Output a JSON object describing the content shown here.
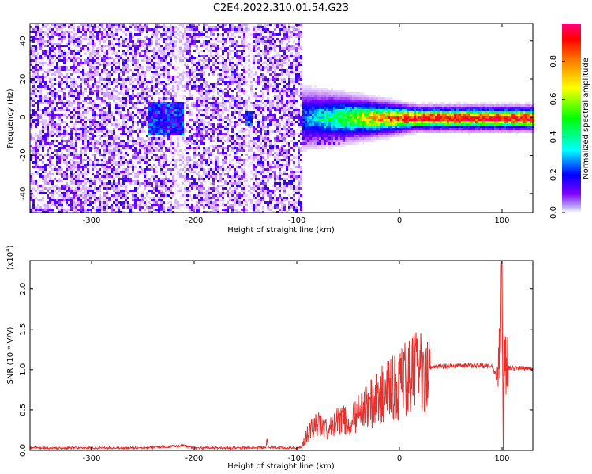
{
  "title": "C2E4.2022.310.01.54.G23",
  "chart_data": [
    {
      "type": "heatmap",
      "xlabel": "Height of straight line (km)",
      "ylabel": "Frequency (Hz)",
      "xlim": [
        -360,
        130
      ],
      "ylim": [
        -50,
        49
      ],
      "x_ticks": [
        -300,
        -200,
        -100,
        0,
        100
      ],
      "x_tick_labels": [
        "-300",
        "-200",
        "-100",
        "0",
        "100"
      ],
      "y_ticks": [
        -40,
        -20,
        0,
        20,
        40
      ],
      "y_tick_labels": [
        "-40",
        "-20",
        "0",
        "20",
        "40"
      ],
      "colorbar": {
        "label": "Normalized spectral amplitude",
        "range": [
          0,
          1
        ],
        "ticks": [
          0.0,
          0.2,
          0.4,
          0.6,
          0.8
        ],
        "tick_labels": [
          "0.0",
          "0.2",
          "0.4",
          "0.6",
          "0.8"
        ],
        "colormap": [
          "#ffffff",
          "#7f00ff",
          "#0000ff",
          "#00ffff",
          "#00ff00",
          "#ffff00",
          "#ff7f00",
          "#ff0000",
          "#ff0080"
        ]
      },
      "noise_region": {
        "x_range": [
          -360,
          -95
        ],
        "amplitude_range": [
          0.0,
          0.25
        ]
      },
      "signal_band": {
        "x_range": [
          -95,
          130
        ],
        "center_frequency": 0,
        "peak_amplitude": 0.95
      },
      "grid": false
    },
    {
      "type": "line",
      "xlabel": "Height of straight line (km)",
      "ylabel": "SNR (10 * V/V)",
      "y_multiplier_label": "(x10",
      "y_multiplier_exponent": "4",
      "y_multiplier_close": ")",
      "xlim": [
        -360,
        130
      ],
      "ylim": [
        0,
        23500
      ],
      "x_ticks": [
        -300,
        -200,
        -100,
        0,
        100
      ],
      "x_tick_labels": [
        "-300",
        "-200",
        "-100",
        "0",
        "100"
      ],
      "y_ticks": [
        0,
        5000,
        10000,
        15000,
        20000
      ],
      "y_tick_labels": [
        "0.0",
        "0.5",
        "1.0",
        "1.5",
        "2.0"
      ],
      "color": "#e8302c",
      "grid": false,
      "series": [
        {
          "x": [
            -360,
            -300,
            -250,
            -210,
            -200,
            -150,
            -130,
            -129,
            -128,
            -110,
            -100,
            -95,
            -90,
            -80,
            -70,
            -60,
            -50,
            -40,
            -30,
            -20,
            -10,
            0,
            10,
            20,
            30,
            40,
            60,
            80,
            90,
            95,
            98,
            100,
            101,
            102,
            103,
            104,
            105,
            110,
            120,
            130
          ],
          "y": [
            300,
            300,
            300,
            600,
            300,
            300,
            400,
            1600,
            400,
            300,
            300,
            500,
            2000,
            3200,
            2500,
            3500,
            3800,
            4500,
            5500,
            6500,
            7500,
            8200,
            9000,
            9800,
            10300,
            10400,
            10500,
            10500,
            10400,
            9000,
            12000,
            23500,
            1500,
            13500,
            10000,
            10300,
            10200,
            10200,
            10200,
            10100
          ]
        }
      ]
    }
  ]
}
